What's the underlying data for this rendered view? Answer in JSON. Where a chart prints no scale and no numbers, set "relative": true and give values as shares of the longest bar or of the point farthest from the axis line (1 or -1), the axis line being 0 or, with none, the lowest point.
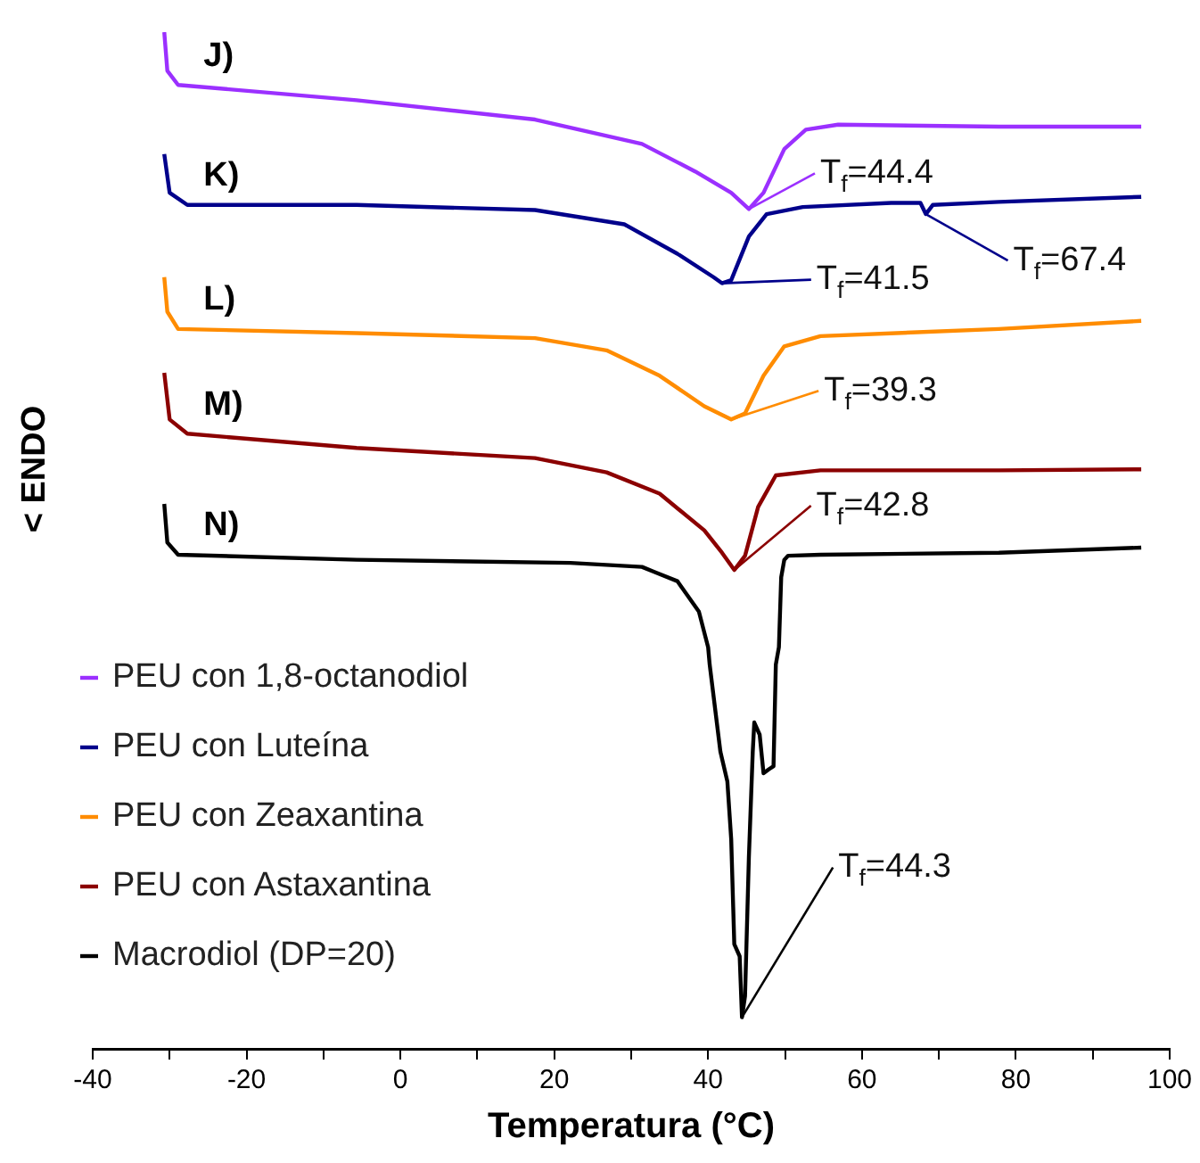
{
  "chart_data": {
    "type": "line",
    "relative": true,
    "xlabel": "Temperatura (°C)",
    "ylabel": "< ENDO",
    "xlim": [
      -40,
      100
    ],
    "xticks": [
      -40,
      {
        "value": -30,
        "label": null
      },
      -20,
      {
        "value": -10,
        "label": null
      },
      0,
      {
        "value": 10,
        "label": null
      },
      20,
      {
        "value": 30,
        "label": null
      },
      40,
      {
        "value": 50,
        "label": null
      },
      60,
      {
        "value": 70,
        "label": null
      },
      80,
      {
        "value": 90,
        "label": null
      },
      100
    ],
    "grid": false,
    "legend": "bottom left",
    "marker": "none",
    "line_style": "solid",
    "series": [
      {
        "name": "PEU con 1,8-octanodiol",
        "color": "#9b30ff",
        "x": [
          -30.7,
          -30.3,
          -28.9,
          -5.7,
          17.5,
          31.4,
          38.3,
          43.0,
          45.3,
          47.2,
          49.9,
          52.7,
          56.9,
          77.8,
          96.3
        ],
        "values": [
          1.0,
          0.962,
          0.948,
          0.933,
          0.914,
          0.89,
          0.863,
          0.842,
          0.826,
          0.842,
          0.885,
          0.904,
          0.909,
          0.907,
          0.907
        ]
      },
      {
        "name": "PEU con Luteína",
        "color": "#00008b",
        "x": [
          -30.7,
          -30.0,
          -27.7,
          -5.7,
          17.5,
          29.1,
          36.0,
          40.7,
          41.8,
          43.0,
          45.3,
          47.6,
          52.3,
          63.8,
          67.6,
          68.3,
          69.2,
          77.8,
          96.3
        ],
        "values": [
          0.88,
          0.842,
          0.83,
          0.83,
          0.825,
          0.811,
          0.782,
          0.759,
          0.753,
          0.756,
          0.799,
          0.821,
          0.828,
          0.832,
          0.832,
          0.821,
          0.83,
          0.833,
          0.838
        ]
      },
      {
        "name": "PEU con Zeaxantina",
        "color": "#ff8c00",
        "x": [
          -30.7,
          -30.3,
          -28.9,
          -5.7,
          17.5,
          26.8,
          33.7,
          39.5,
          43.0,
          44.8,
          47.2,
          49.9,
          54.6,
          77.8,
          96.3
        ],
        "values": [
          0.759,
          0.725,
          0.708,
          0.704,
          0.699,
          0.687,
          0.662,
          0.632,
          0.619,
          0.625,
          0.662,
          0.691,
          0.701,
          0.708,
          0.716
        ]
      },
      {
        "name": "PEU con Astaxantina",
        "color": "#8b0000",
        "x": [
          -30.7,
          -30.0,
          -27.7,
          -5.7,
          17.5,
          26.8,
          33.7,
          39.5,
          41.8,
          43.4,
          44.8,
          46.5,
          48.8,
          54.6,
          77.8,
          96.3
        ],
        "values": [
          0.665,
          0.619,
          0.605,
          0.591,
          0.581,
          0.567,
          0.546,
          0.51,
          0.488,
          0.471,
          0.485,
          0.533,
          0.564,
          0.569,
          0.569,
          0.57
        ]
      },
      {
        "name": "Macrodiol (DP=20)",
        "color": "#000000",
        "x": [
          -30.7,
          -30.3,
          -28.9,
          -5.7,
          22.1,
          31.4,
          33.0,
          36.0,
          38.8,
          40.0,
          40.2,
          41.6,
          42.5,
          43.0,
          43.4,
          44.1,
          44.4,
          44.8,
          45.3,
          45.8,
          46.0,
          46.2,
          46.7,
          47.2,
          47.9,
          48.5,
          48.8,
          49.2,
          49.5,
          49.9,
          50.4,
          54.6,
          77.8,
          96.3
        ],
        "values": [
          0.536,
          0.498,
          0.486,
          0.481,
          0.478,
          0.474,
          0.469,
          0.46,
          0.43,
          0.395,
          0.378,
          0.292,
          0.263,
          0.206,
          0.103,
          0.091,
          0.031,
          0.052,
          0.189,
          0.292,
          0.321,
          0.321,
          0.309,
          0.271,
          0.275,
          0.278,
          0.378,
          0.395,
          0.464,
          0.481,
          0.485,
          0.486,
          0.488,
          0.493
        ]
      }
    ],
    "annotations": [
      "J)",
      "K)",
      "L)",
      "M)",
      "N)",
      {
        "text": "T$_{f}$=44.4",
        "x": 45.3,
        "y": 0.826
      },
      {
        "text": "T$_{f}$=41.5",
        "x": 41.8,
        "y": 0.753
      },
      {
        "text": "T$_{f}$=67.4",
        "x": 68.3,
        "y": 0.821
      },
      {
        "text": "T$_{f}$=39.3",
        "x": 43.0,
        "y": 0.619
      },
      {
        "text": "T$_{f}$=42.8",
        "x": 43.4,
        "y": 0.471
      },
      {
        "text": "T$_{f}$=44.3",
        "x": 44.4,
        "y": 0.031
      }
    ]
  }
}
